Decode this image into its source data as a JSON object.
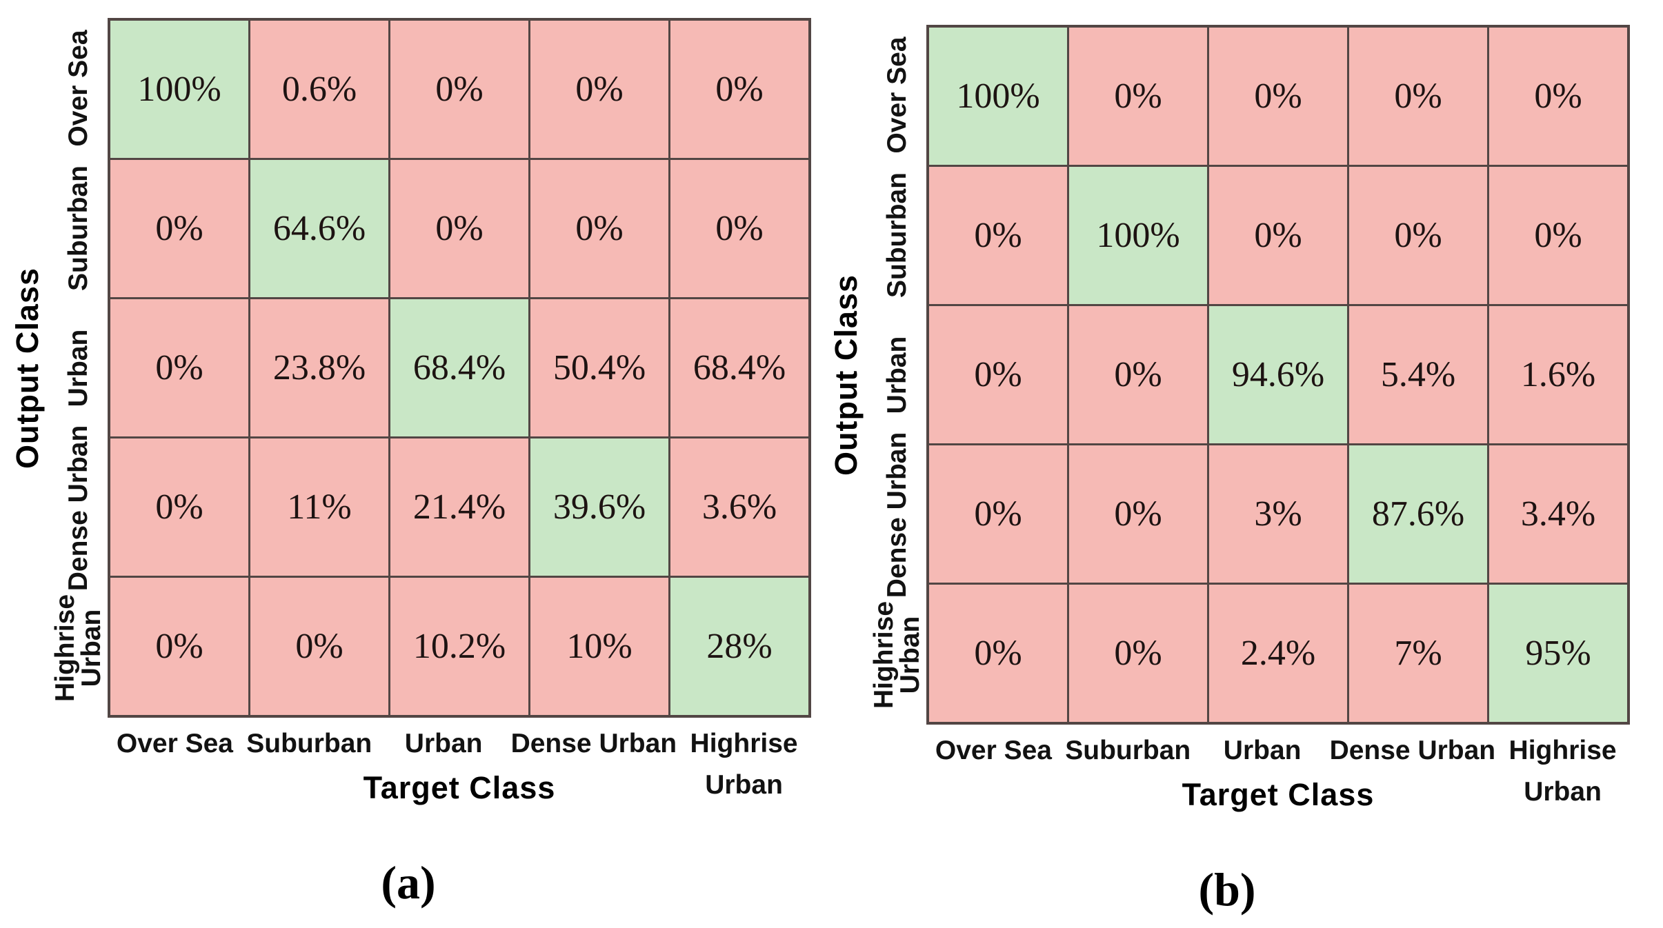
{
  "colors": {
    "diagonal_green": "#c9e7c6",
    "off_diagonal_pink": "#f6bab5",
    "grid_line": "#524644"
  },
  "classes": [
    "Over Sea",
    "Suburban",
    "Urban",
    "Dense Urban",
    "Highrise Urban"
  ],
  "matrices": [
    {
      "caption": "(a)",
      "y_axis_title": "Output Class",
      "x_axis_title": "Target Class",
      "row_labels": [
        "Over Sea",
        "Suburban",
        "Urban",
        "Dense Urban",
        "Highrise\nUrban"
      ],
      "col_labels": [
        "Over Sea",
        "Suburban",
        "Urban",
        "Dense Urban",
        "Highrise\nUrban"
      ],
      "values": [
        [
          "100%",
          "0.6%",
          "0%",
          "0%",
          "0%"
        ],
        [
          "0%",
          "64.6%",
          "0%",
          "0%",
          "0%"
        ],
        [
          "0%",
          "23.8%",
          "68.4%",
          "50.4%",
          "68.4%"
        ],
        [
          "0%",
          "11%",
          "21.4%",
          "39.6%",
          "3.6%"
        ],
        [
          "0%",
          "0%",
          "10.2%",
          "10%",
          "28%"
        ]
      ]
    },
    {
      "caption": "(b)",
      "y_axis_title": "Output Class",
      "x_axis_title": "Target Class",
      "row_labels": [
        "Over Sea",
        "Suburban",
        "Urban",
        "Dense Urban",
        "Highrise\nUrban"
      ],
      "col_labels": [
        "Over Sea",
        "Suburban",
        "Urban",
        "Dense Urban",
        "Highrise\nUrban"
      ],
      "values": [
        [
          "100%",
          "0%",
          "0%",
          "0%",
          "0%"
        ],
        [
          "0%",
          "100%",
          "0%",
          "0%",
          "0%"
        ],
        [
          "0%",
          "0%",
          "94.6%",
          "5.4%",
          "1.6%"
        ],
        [
          "0%",
          "0%",
          "3%",
          "87.6%",
          "3.4%"
        ],
        [
          "0%",
          "0%",
          "2.4%",
          "7%",
          "95%"
        ]
      ]
    }
  ],
  "chart_data": [
    {
      "type": "heatmap",
      "title": "(a)",
      "xlabel": "Target Class",
      "ylabel": "Output Class",
      "x_categories": [
        "Over Sea",
        "Suburban",
        "Urban",
        "Dense Urban",
        "Highrise Urban"
      ],
      "y_categories": [
        "Over Sea",
        "Suburban",
        "Urban",
        "Dense Urban",
        "Highrise Urban"
      ],
      "values_percent": [
        [
          100,
          0.6,
          0,
          0,
          0
        ],
        [
          0,
          64.6,
          0,
          0,
          0
        ],
        [
          0,
          23.8,
          68.4,
          50.4,
          68.4
        ],
        [
          0,
          11,
          21.4,
          39.6,
          3.6
        ],
        [
          0,
          0,
          10.2,
          10,
          28
        ]
      ],
      "diagonal_color": "#c9e7c6",
      "off_diagonal_color": "#f6bab5",
      "legend": "none",
      "grid": "on"
    },
    {
      "type": "heatmap",
      "title": "(b)",
      "xlabel": "Target Class",
      "ylabel": "Output Class",
      "x_categories": [
        "Over Sea",
        "Suburban",
        "Urban",
        "Dense Urban",
        "Highrise Urban"
      ],
      "y_categories": [
        "Over Sea",
        "Suburban",
        "Urban",
        "Dense Urban",
        "Highrise Urban"
      ],
      "values_percent": [
        [
          100,
          0,
          0,
          0,
          0
        ],
        [
          0,
          100,
          0,
          0,
          0
        ],
        [
          0,
          0,
          94.6,
          5.4,
          1.6
        ],
        [
          0,
          0,
          3,
          87.6,
          3.4
        ],
        [
          0,
          0,
          2.4,
          7,
          95
        ]
      ],
      "diagonal_color": "#c9e7c6",
      "off_diagonal_color": "#f6bab5",
      "legend": "none",
      "grid": "on"
    }
  ]
}
